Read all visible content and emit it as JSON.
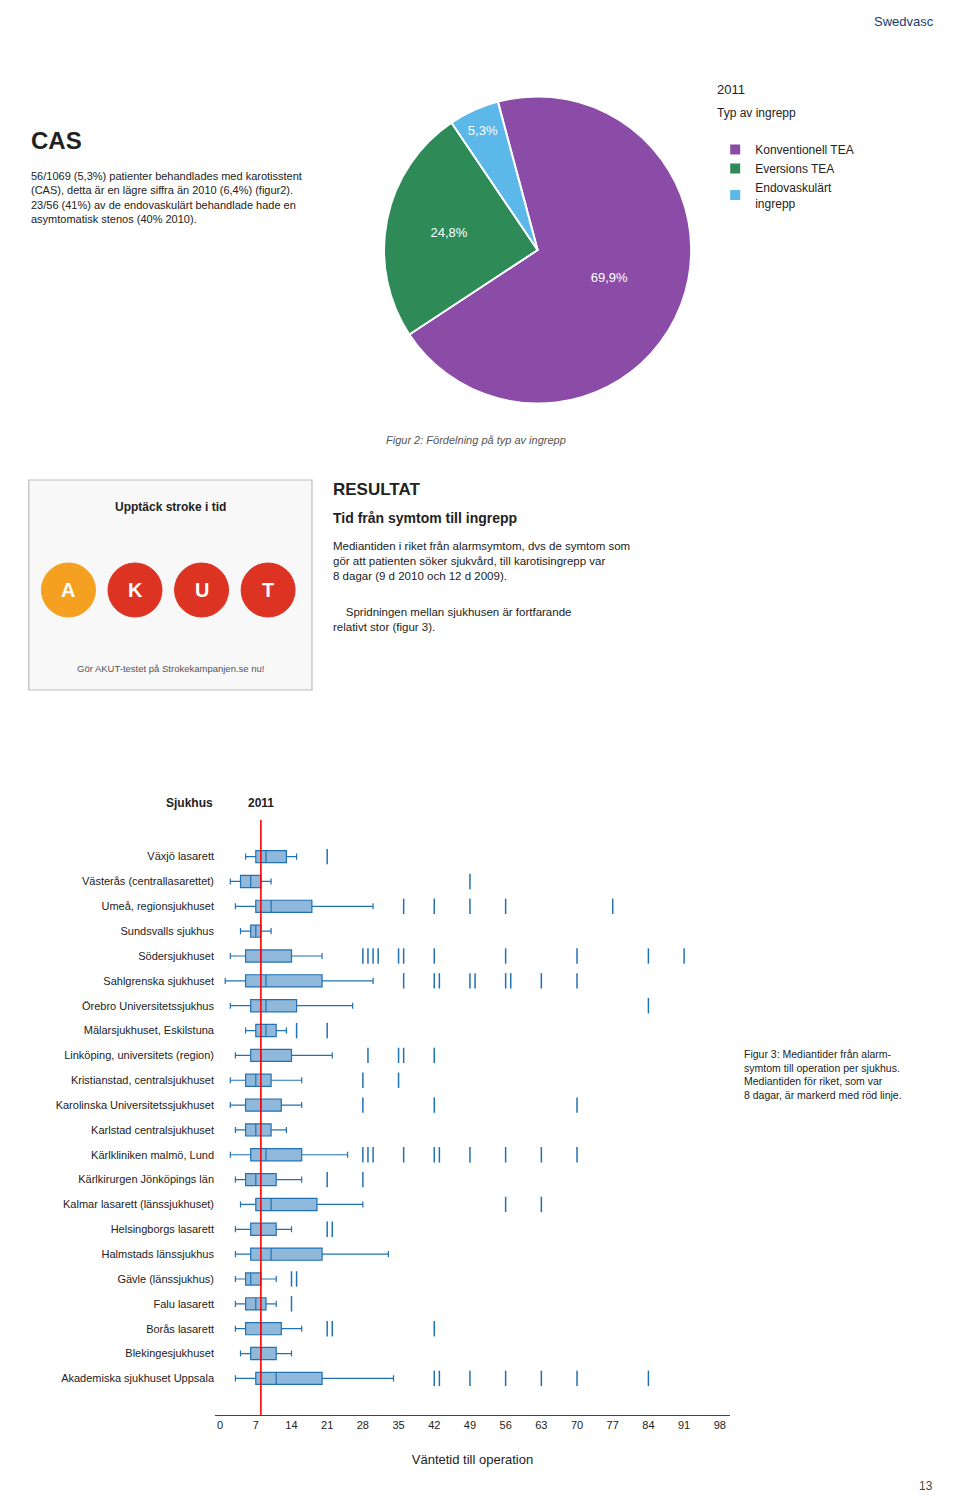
{
  "chart_data": [
    {
      "type": "pie",
      "title": "2011",
      "subtitle": "Typ av ingrepp",
      "categories": [
        "Konventionell TEA",
        "Eversions TEA",
        "Endovaskulärt\ningrepp"
      ],
      "values": [
        69.9,
        24.8,
        5.3
      ],
      "value_labels": [
        "69,9%",
        "24,8%",
        "5,3%"
      ],
      "colors": [
        "#8B4CA8",
        "#2E8B57",
        "#5BB8E8"
      ],
      "data_labels": true,
      "legend": "right",
      "annotations": [
        "Figur 2: Fördelning på typ av ingrepp",
        "Swedvasc",
        "CAS",
        "56/1069 (5,3%) patienter behandlades med karotisstent\n(CAS), detta är en lägre siffra än 2010 (6,4%) (figur2).\n23/56 (41%) av de endovaskulärt behandlade hade en\nasymtomatisk stenos (40% 2010).",
        "Upptäck stroke i tid",
        "A",
        "K",
        "U",
        "T",
        "Gör AKUT-testet på Strokekampanjen.se nu!",
        "RESULTAT",
        "Tid från symtom till ingrepp",
        "Mediantiden i riket från alarmsymtom, dvs de symtom som\ngör att patienten söker sjukvård, till karotisingrepp var\n8 dagar (9 d 2010 och 12 d 2009).",
        "    Spridningen mellan sjukhusen är fortfarande\nrelativt stor (figur 3)."
      ]
    },
    {
      "type": "box",
      "orientation": "horizontal",
      "title": "2011",
      "ylabel": "Sjukhus",
      "xlabel": "Väntetid till operation",
      "categories": [
        "Växjö lasarett",
        "Västerås (centrallasarettet)",
        "Umeå, regionsjukhuset",
        "Sundsvalls sjukhus",
        "Södersjukhuset",
        "Sahlgrenska sjukhuset",
        "Örebro Universitetssjukhus",
        "Mälarsjukhuset, Eskilstuna",
        "Linköping, universitets (region)",
        "Kristianstad, centralsjukhuset",
        "Karolinska Universitetssjukhuset",
        "Karlstad centralsjukhuset",
        "Kärlkliniken malmö, Lund",
        "Kärlkirurgen Jönköpings län",
        "Kalmar lasarett (länssjukhuset)",
        "Helsingborgs lasarett",
        "Halmstads länssjukhus",
        "Gävle (länssjukhus)",
        "Falu lasarett",
        "Borås lasarett",
        "Blekingesjukhuset",
        "Akademiska sjukhuset Uppsala"
      ],
      "q1": [
        7,
        4,
        7,
        6,
        5,
        5,
        6,
        7,
        6,
        5,
        5,
        5,
        6,
        5,
        7,
        6,
        6,
        5,
        5,
        5,
        6,
        7
      ],
      "median": [
        9,
        6,
        10,
        7,
        8,
        9,
        9,
        9,
        8,
        7,
        8,
        7,
        9,
        7,
        10,
        8,
        10,
        6,
        7,
        8,
        8,
        11
      ],
      "q3": [
        13,
        8,
        18,
        8,
        14,
        20,
        15,
        11,
        14,
        10,
        12,
        10,
        16,
        11,
        19,
        11,
        20,
        8,
        9,
        12,
        11,
        20
      ],
      "whislo": [
        5,
        2,
        3,
        4,
        2,
        1,
        2,
        5,
        3,
        2,
        2,
        3,
        2,
        3,
        4,
        3,
        3,
        3,
        3,
        3,
        4,
        3
      ],
      "whishi": [
        15,
        10,
        30,
        10,
        20,
        30,
        26,
        13,
        22,
        16,
        16,
        13,
        25,
        16,
        28,
        14,
        33,
        11,
        11,
        16,
        14,
        34
      ],
      "outliers": [
        [
          21
        ],
        [
          49
        ],
        [
          36,
          42,
          49,
          56,
          77
        ],
        [],
        [
          28,
          29,
          30,
          31,
          35,
          36,
          42,
          56,
          70,
          84,
          91
        ],
        [
          36,
          42,
          43,
          49,
          50,
          56,
          57,
          63,
          70
        ],
        [
          84
        ],
        [
          15,
          21
        ],
        [
          29,
          35,
          36,
          42
        ],
        [
          28,
          35
        ],
        [
          28,
          42,
          70
        ],
        [],
        [
          28,
          29,
          30,
          36,
          42,
          43,
          49,
          56,
          63,
          70
        ],
        [
          21,
          28
        ],
        [
          56,
          63
        ],
        [
          21,
          22
        ],
        [],
        [
          14,
          15
        ],
        [
          14
        ],
        [
          21,
          22,
          42
        ],
        [],
        [
          42,
          43,
          49,
          56,
          63,
          70,
          84
        ]
      ],
      "color": "#2171B5",
      "xlim": [
        -1,
        100
      ],
      "xticks": [
        0,
        7,
        14,
        21,
        28,
        35,
        42,
        49,
        56,
        63,
        70,
        77,
        84,
        91,
        98
      ],
      "grid": false,
      "ref_line": {
        "value": 8,
        "color": "red"
      },
      "annotations": [
        "Figur 3: Mediantider från alarm-\nsymtom till operation per sjukhus.\nMediantiden för riket, som var\n8 dagar, är markerd med röd linje.",
        "13"
      ]
    }
  ]
}
